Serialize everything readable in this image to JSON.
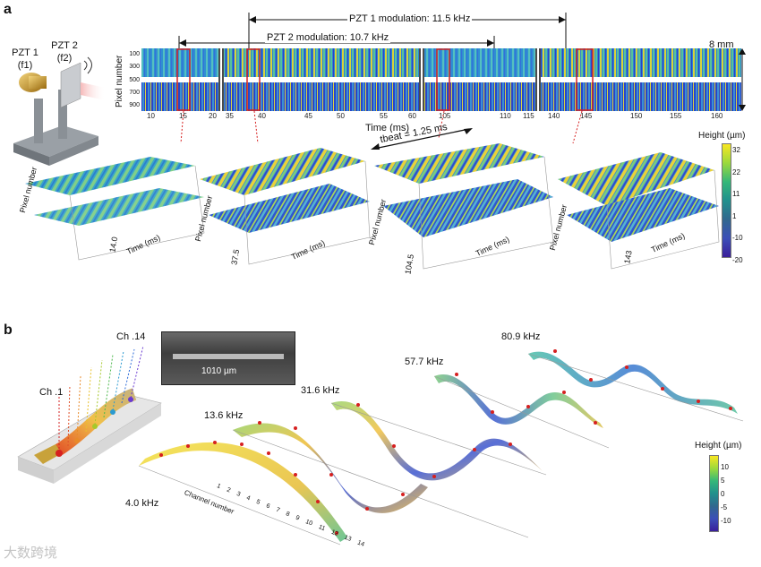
{
  "panel_a": {
    "label": "a",
    "pzt1_label": "PZT 1",
    "pzt1_freq": "(f1)",
    "pzt2_label": "PZT 2",
    "pzt2_freq": "(f2)",
    "modulation1": "PZT 1 modulation: 11.5 kHz",
    "modulation2": "PZT 2 modulation: 10.7 kHz",
    "scale": "8 mm",
    "ylabel": "Pixel number",
    "yticks": [
      "100",
      "300",
      "500",
      "700",
      "900"
    ],
    "xlabel": "Time (ms)",
    "xticks_seg1": [
      "10",
      "15",
      "20"
    ],
    "xticks_seg2": [
      "35",
      "40",
      "45",
      "50",
      "55",
      "60"
    ],
    "xticks_seg3": [
      "105",
      "110",
      "115"
    ],
    "xticks_seg4": [
      "140",
      "145",
      "150",
      "155",
      "160"
    ],
    "beat_label": "tbeat = 1.25 ms",
    "surf_labels": [
      {
        "pixel": "Pixel number",
        "time": "Time (ms)",
        "t": "14.0"
      },
      {
        "pixel": "Pixel number",
        "time": "Time (ms)",
        "t": "37.5"
      },
      {
        "pixel": "Pixel number",
        "time": "Time (ms)",
        "t": "104.5"
      },
      {
        "pixel": "Pixel number",
        "time": "Time (ms)",
        "t": "143"
      }
    ],
    "colorbar_title": "Height (µm)",
    "colorbar_ticks": [
      "32",
      "22",
      "11",
      "1",
      "-10",
      "-20"
    ]
  },
  "panel_b": {
    "label": "b",
    "ch1": "Ch .1",
    "ch14": "Ch .14",
    "sem_scale": "1010 µm",
    "modes": [
      "4.0 kHz",
      "13.6 kHz",
      "31.6 kHz",
      "57.7 kHz",
      "80.9 kHz"
    ],
    "channel_axis": "Channel number",
    "channel_ticks": [
      "1",
      "2",
      "3",
      "4",
      "5",
      "6",
      "7",
      "8",
      "9",
      "10",
      "11",
      "12",
      "13",
      "14"
    ],
    "colorbar_title": "Height (µm)",
    "colorbar_ticks": [
      "10",
      "5",
      "0",
      "-5",
      "-10"
    ]
  },
  "watermark": "大数跨境"
}
